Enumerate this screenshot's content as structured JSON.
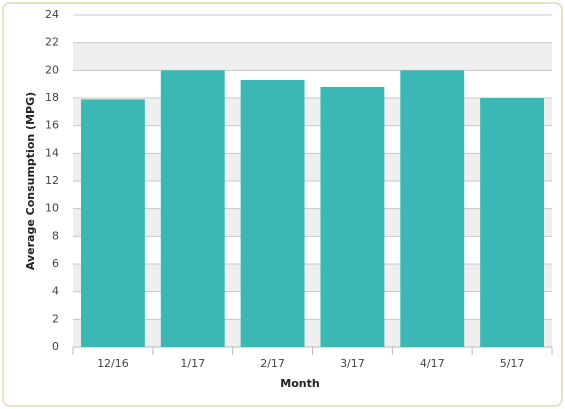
{
  "chart_data": {
    "type": "bar",
    "x_label": "Month",
    "y_label": "Average Consumption (MPG)",
    "categories": [
      "12/16",
      "1/17",
      "2/17",
      "3/17",
      "4/17",
      "5/17"
    ],
    "values": [
      17.9,
      20,
      19.3,
      18.8,
      20,
      18
    ],
    "color": "#3bb8b4",
    "ylim": [
      0,
      24
    ],
    "yticks": [
      0,
      2,
      4,
      6,
      8,
      10,
      12,
      14,
      16,
      18,
      20,
      22,
      24
    ],
    "grid": true,
    "band_color": "#efefef"
  }
}
